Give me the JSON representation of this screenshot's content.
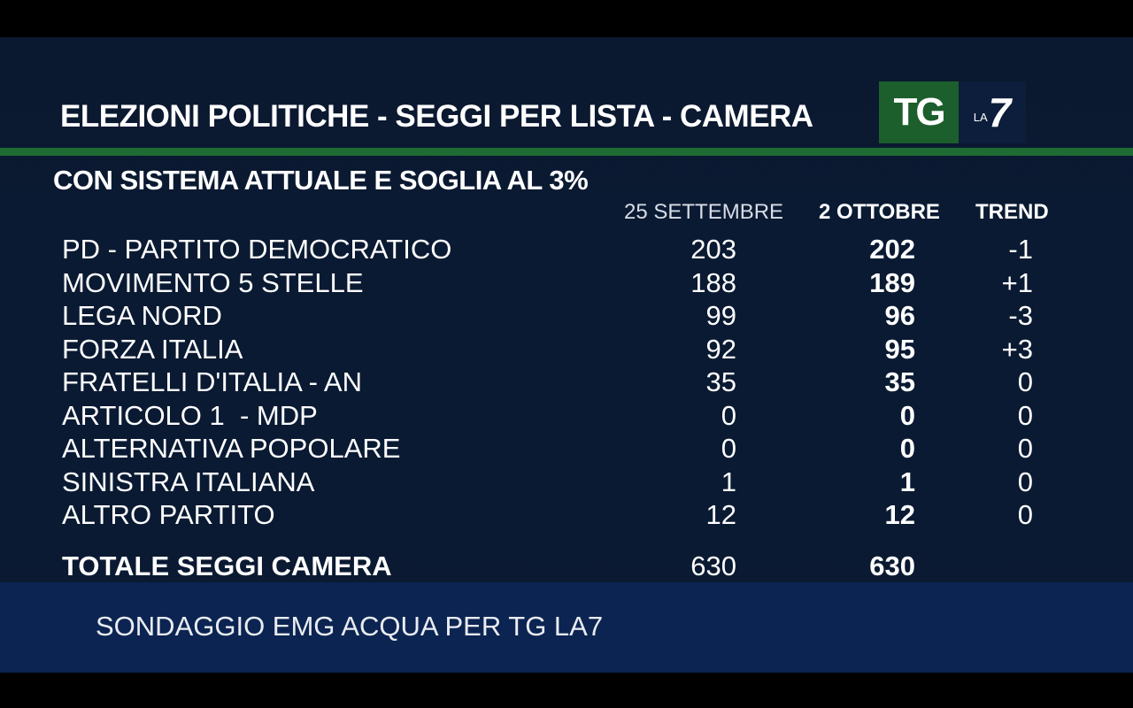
{
  "header": {
    "title": "ELEZIONI POLITICHE - SEGGI  PER  LISTA - CAMERA",
    "subtitle": "CON SISTEMA ATTUALE E SOGLIA AL 3%"
  },
  "logo": {
    "tg": "TG",
    "la": "LA",
    "seven": "7"
  },
  "columns": {
    "col1": "25 SETTEMBRE",
    "col2": "2 OTTOBRE",
    "col3": "TREND"
  },
  "rows": [
    {
      "name": "PD - PARTITO DEMOCRATICO",
      "v1": "203",
      "v2": "202",
      "trend": "-1"
    },
    {
      "name": "MOVIMENTO 5 STELLE",
      "v1": "188",
      "v2": "189",
      "trend": "+1"
    },
    {
      "name": "LEGA NORD",
      "v1": "99",
      "v2": "96",
      "trend": "-3"
    },
    {
      "name": "FORZA ITALIA",
      "v1": "92",
      "v2": "95",
      "trend": "+3"
    },
    {
      "name": "FRATELLI D'ITALIA - AN",
      "v1": "35",
      "v2": "35",
      "trend": "0"
    },
    {
      "name": "ARTICOLO 1  - MDP",
      "v1": "0",
      "v2": "0",
      "trend": "0"
    },
    {
      "name": "ALTERNATIVA POPOLARE",
      "v1": "0",
      "v2": "0",
      "trend": "0"
    },
    {
      "name": "SINISTRA ITALIANA",
      "v1": "1",
      "v2": "1",
      "trend": "0"
    },
    {
      "name": "ALTRO PARTITO",
      "v1": "12",
      "v2": "12",
      "trend": "0"
    }
  ],
  "total": {
    "name": "TOTALE SEGGI CAMERA",
    "v1": "630",
    "v2": "630"
  },
  "footer": {
    "source": "SONDAGGIO EMG ACQUA PER TG LA7"
  },
  "colors": {
    "background": "#0a1a33",
    "accent_green": "#1f6b34",
    "footer_bg": "#0c2451"
  }
}
